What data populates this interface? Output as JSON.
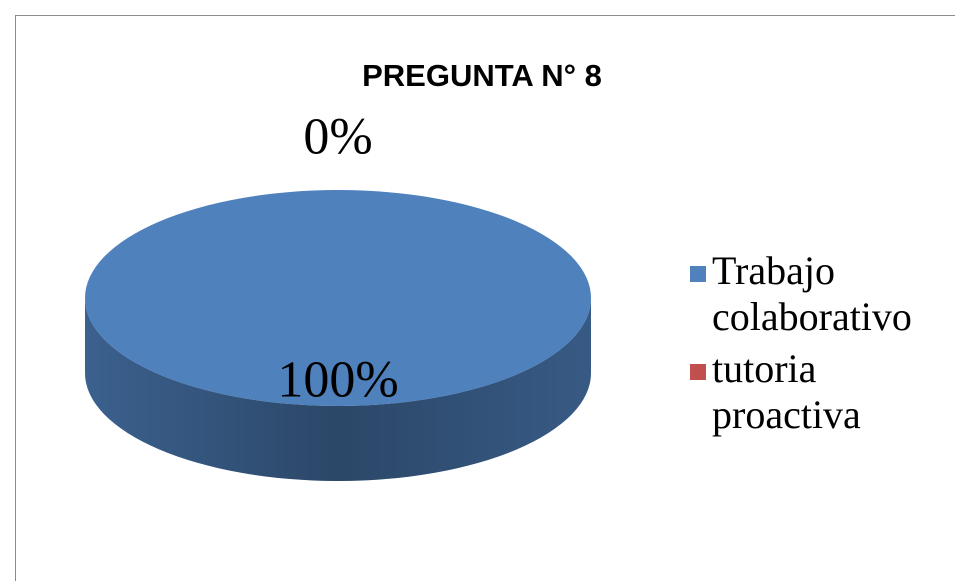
{
  "chart_data": {
    "type": "pie",
    "title": "PREGUNTA N° 8",
    "categories": [
      "Trabajo colaborativo",
      "tutoria proactiva"
    ],
    "values": [
      100,
      0
    ],
    "value_labels": [
      "100%",
      "0%"
    ],
    "colors": [
      "#4f81bd",
      "#c0504d"
    ],
    "legend": "right"
  }
}
